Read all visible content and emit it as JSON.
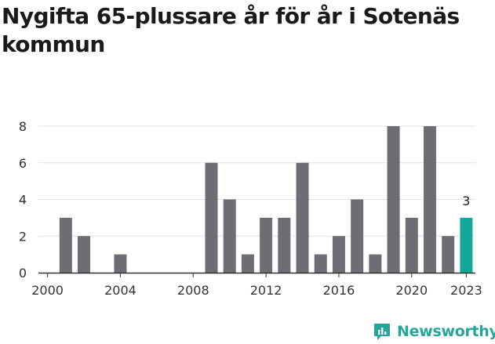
{
  "title": "Nygifta 65-plussare år för år i Sotenäs kommun",
  "brand": {
    "name": "Newsworthy",
    "icon": "newsworthy-logo-icon"
  },
  "colors": {
    "bar": "#6d6d73",
    "highlight": "#14a89b",
    "grid": "#e2e2e2",
    "axis": "#333333",
    "brand": "#26a69a"
  },
  "chart_data": {
    "type": "bar",
    "x": [
      2000,
      2001,
      2002,
      2003,
      2004,
      2005,
      2006,
      2007,
      2008,
      2009,
      2010,
      2011,
      2012,
      2013,
      2014,
      2015,
      2016,
      2017,
      2018,
      2019,
      2020,
      2021,
      2022,
      2023
    ],
    "values": [
      0,
      3,
      2,
      0,
      1,
      0,
      0,
      0,
      0,
      6,
      4,
      1,
      3,
      3,
      6,
      1,
      2,
      4,
      1,
      8,
      3,
      8,
      2,
      3
    ],
    "highlight_index": 23,
    "highlight_label": "3",
    "x_ticks": [
      "2000",
      "2004",
      "2008",
      "2012",
      "2016",
      "2020",
      "2023"
    ],
    "y_ticks": [
      "0",
      "2",
      "4",
      "6",
      "8"
    ],
    "ylim": [
      0,
      8
    ],
    "grid": true,
    "legend": false
  }
}
